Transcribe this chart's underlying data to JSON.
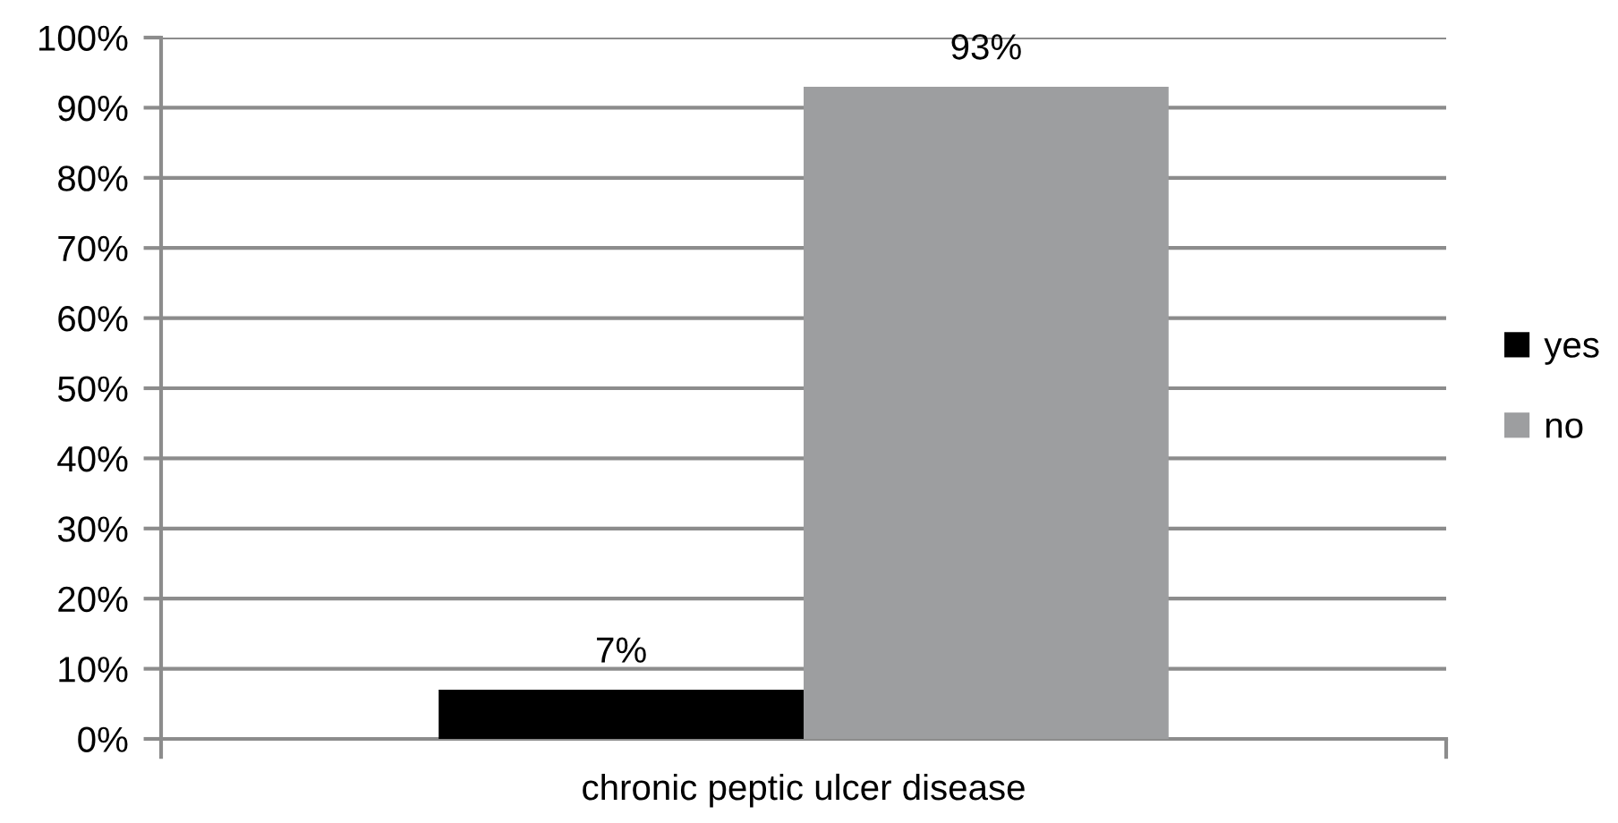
{
  "chart_data": {
    "type": "bar",
    "categories": [
      "chronic peptic ulcer disease"
    ],
    "series": [
      {
        "name": "yes",
        "color": "#000000",
        "values": [
          7
        ],
        "value_labels": [
          "7%"
        ]
      },
      {
        "name": "no",
        "color": "#9d9ea0",
        "values": [
          93
        ],
        "value_labels": [
          "93%"
        ]
      }
    ],
    "ylim": [
      0,
      100
    ],
    "yticks": [
      {
        "value": 0,
        "label": "0%"
      },
      {
        "value": 10,
        "label": "10%"
      },
      {
        "value": 20,
        "label": "20%"
      },
      {
        "value": 30,
        "label": "30%"
      },
      {
        "value": 40,
        "label": "40%"
      },
      {
        "value": 50,
        "label": "50%"
      },
      {
        "value": 60,
        "label": "60%"
      },
      {
        "value": 70,
        "label": "70%"
      },
      {
        "value": 80,
        "label": "80%"
      },
      {
        "value": 90,
        "label": "90%"
      },
      {
        "value": 100,
        "label": "100%"
      }
    ],
    "grid": "y",
    "legend": "right"
  }
}
